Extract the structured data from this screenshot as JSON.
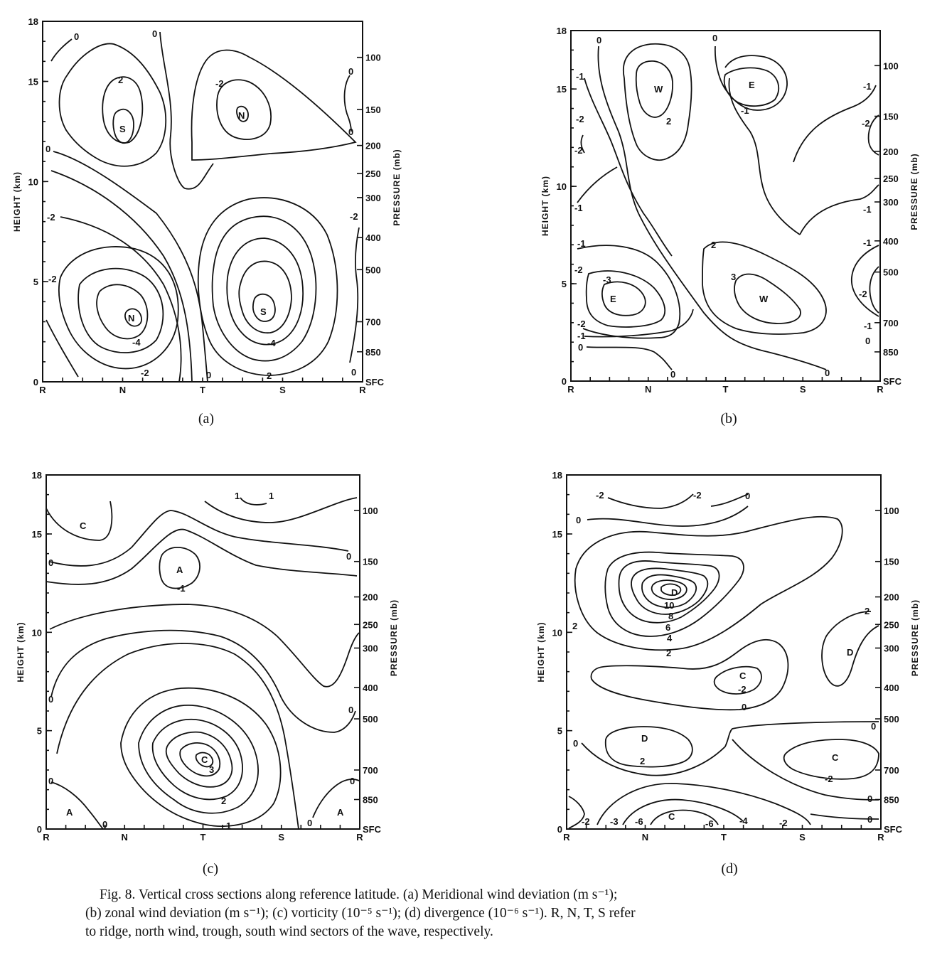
{
  "panels": [
    {
      "id": "a",
      "tag": "(a)",
      "left_axis": {
        "title": "HEIGHT (km)",
        "ticks": [
          "0",
          "5",
          "10",
          "15",
          "18"
        ],
        "range": [
          0,
          18
        ]
      },
      "right_axis": {
        "title": "PRESSURE (mb)",
        "ticks": [
          "SFC",
          "850",
          "700",
          "500",
          "400",
          "300",
          "250",
          "200",
          "150",
          "100"
        ]
      },
      "x_ticks": [
        "R",
        "N",
        "T",
        "S",
        "R"
      ],
      "contour_labels": [
        "0",
        "0",
        "0",
        "-2",
        "2",
        "S",
        "N",
        "0",
        "0",
        "0",
        "-2",
        "-2",
        "-2",
        "N",
        "-4",
        "-2",
        "0",
        "S",
        "-4",
        "2",
        "-2",
        "0"
      ]
    },
    {
      "id": "b",
      "tag": "(b)",
      "left_axis": {
        "title": "HEIGHT (km)",
        "ticks": [
          "0",
          "5",
          "10",
          "15",
          "18"
        ],
        "range": [
          0,
          18
        ]
      },
      "right_axis": {
        "title": "PRESSURE (mb)",
        "ticks": [
          "SFC",
          "850",
          "700",
          "500",
          "400",
          "300",
          "250",
          "200",
          "150",
          "100"
        ]
      },
      "x_ticks": [
        "R",
        "N",
        "T",
        "S",
        "R"
      ],
      "contour_labels": [
        "0",
        "0",
        "W",
        "2",
        "E",
        "-1",
        "-1",
        "-2",
        "-2",
        "-1",
        "-1",
        "-2",
        "-1",
        "-1",
        "-2",
        "-3",
        "E",
        "-2",
        "-1",
        "0",
        "0",
        "2",
        "3",
        "W",
        "0",
        "-1",
        "-2",
        "-1",
        "0"
      ]
    },
    {
      "id": "c",
      "tag": "(c)",
      "left_axis": {
        "title": "HEIGHT (km)",
        "ticks": [
          "0",
          "5",
          "10",
          "15",
          "18"
        ],
        "range": [
          0,
          18
        ]
      },
      "right_axis": {
        "title": "PRESSURE (mb)",
        "ticks": [
          "SFC",
          "850",
          "700",
          "500",
          "400",
          "300",
          "250",
          "200",
          "150",
          "100"
        ]
      },
      "x_ticks": [
        "R",
        "N",
        "T",
        "S",
        "R"
      ],
      "contour_labels": [
        "C",
        "1",
        "1",
        "0",
        "A",
        "-1",
        "0",
        "0",
        "0",
        "C",
        "3",
        "2",
        "1",
        "0",
        "A",
        "0",
        "0",
        "0",
        "A"
      ]
    },
    {
      "id": "d",
      "tag": "(d)",
      "left_axis": {
        "title": "HEIGHT (km)",
        "ticks": [
          "0",
          "5",
          "10",
          "15",
          "18"
        ],
        "range": [
          0,
          18
        ]
      },
      "right_axis": {
        "title": "PRESSURE (mb)",
        "ticks": [
          "SFC",
          "850",
          "700",
          "500",
          "400",
          "300",
          "250",
          "200",
          "150",
          "100"
        ]
      },
      "x_ticks": [
        "R",
        "N",
        "T",
        "S",
        "R"
      ],
      "contour_labels": [
        "-2",
        "-2",
        "0",
        "0",
        "D",
        "10",
        "8",
        "6",
        "4",
        "2",
        "2",
        "2",
        "D",
        "C",
        "-2",
        "0",
        "0",
        "D",
        "2",
        "0",
        "C",
        "-2",
        "0",
        "0",
        "-2",
        "-3",
        "-6",
        "C",
        "-6",
        "-4",
        "-2",
        "0"
      ]
    }
  ],
  "caption": {
    "lines": [
      "Fig. 8. Vertical cross sections along reference latitude. (a) Meridional wind deviation (m s⁻¹);",
      "(b) zonal wind deviation (m s⁻¹); (c) vorticity (10⁻⁵ s⁻¹); (d) divergence (10⁻⁶ s⁻¹). R, N, T, S refer",
      "to ridge, north wind, trough, south wind sectors of the wave, respectively."
    ]
  }
}
